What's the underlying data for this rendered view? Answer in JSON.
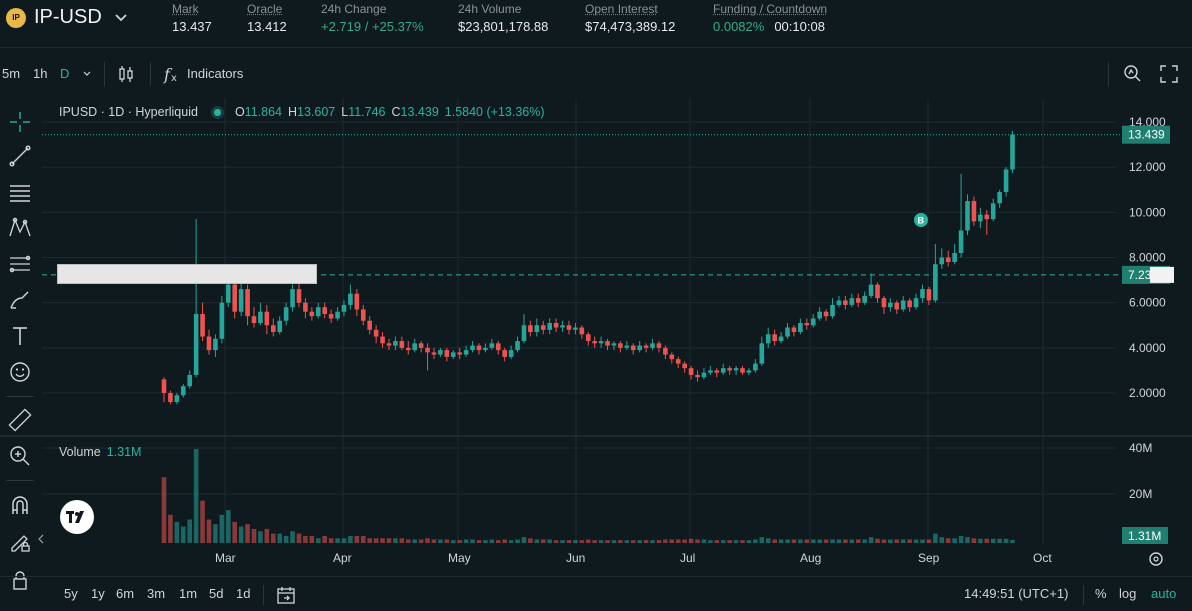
{
  "header": {
    "pair": "IP-USD",
    "logo_text": "IP",
    "stats": [
      {
        "label": "Mark",
        "value": "13.437",
        "underline": true
      },
      {
        "label": "Oracle",
        "value": "13.412",
        "underline": true
      },
      {
        "label": "24h Change",
        "value": "+2.719 / +25.37%",
        "green": true
      },
      {
        "label": "24h Volume",
        "value": "$23,801,178.88"
      },
      {
        "label": "Open Interest",
        "value": "$74,473,389.12",
        "underline": true
      },
      {
        "label": "Funding / Countdown",
        "value_a": "0.0082%",
        "value_b": "00:10:08",
        "underline": true
      }
    ]
  },
  "toolbar": {
    "intervals": [
      "5m",
      "1h",
      "D"
    ],
    "active_interval": "D",
    "indicators_label": "Indicators"
  },
  "legend": {
    "symbol": "IPUSD · 1D · Hyperliquid",
    "open_key": "O",
    "open": "11.864",
    "high_key": "H",
    "high": "13.607",
    "low_key": "L",
    "low": "11.746",
    "close_key": "C",
    "close": "13.439",
    "change": "1.5840 (+13.36%)"
  },
  "volume_legend": {
    "label": "Volume",
    "value": "1.31M"
  },
  "colors": {
    "up": "#26a69a",
    "down": "#ef5350",
    "accent": "#2ab4a0"
  },
  "chart_data": {
    "type": "candlestick",
    "title": "IPUSD · 1D · Hyperliquid",
    "y_ticks": [
      "14.000",
      "12.000",
      "10.000",
      "8.0000",
      "6.0000",
      "4.0000",
      "2.0000"
    ],
    "y_range": [
      0,
      15
    ],
    "x_ticks": [
      "Mar",
      "Apr",
      "May",
      "Jun",
      "Jul",
      "Aug",
      "Sep",
      "Oct"
    ],
    "volume_ticks": [
      "40M",
      "20M"
    ],
    "last_price_label": "13.439",
    "marker_price_label": "7.23",
    "marker_letter": "B",
    "volume_label": "1.31M",
    "candles": [
      [
        2.6,
        2.0,
        2.7,
        1.6
      ],
      [
        2.0,
        1.6,
        2.1,
        1.5
      ],
      [
        1.6,
        1.9,
        2.0,
        1.5
      ],
      [
        1.9,
        2.3,
        2.4,
        1.8
      ],
      [
        2.3,
        2.8,
        3.0,
        2.2
      ],
      [
        2.8,
        5.5,
        9.7,
        2.7
      ],
      [
        5.5,
        4.5,
        6.0,
        4.3
      ],
      [
        4.5,
        3.9,
        4.8,
        3.7
      ],
      [
        3.9,
        4.4,
        4.6,
        3.6
      ],
      [
        4.4,
        6.0,
        6.3,
        4.2
      ],
      [
        6.0,
        6.8,
        7.5,
        5.8
      ],
      [
        6.8,
        5.6,
        7.0,
        5.3
      ],
      [
        5.6,
        6.6,
        7.2,
        5.4
      ],
      [
        6.6,
        5.4,
        6.8,
        5.0
      ],
      [
        5.4,
        5.1,
        5.8,
        4.9
      ],
      [
        5.1,
        5.6,
        6.0,
        5.0
      ],
      [
        5.6,
        5.0,
        5.9,
        4.6
      ],
      [
        5.0,
        4.7,
        5.3,
        4.5
      ],
      [
        4.7,
        5.2,
        5.4,
        4.6
      ],
      [
        5.2,
        5.8,
        6.0,
        5.0
      ],
      [
        5.8,
        6.6,
        6.8,
        5.6
      ],
      [
        6.6,
        6.0,
        6.9,
        5.8
      ],
      [
        6.0,
        5.6,
        6.2,
        5.3
      ],
      [
        5.6,
        5.4,
        5.8,
        5.2
      ],
      [
        5.4,
        5.8,
        6.0,
        5.3
      ],
      [
        5.8,
        5.5,
        6.0,
        5.3
      ],
      [
        5.5,
        5.3,
        5.7,
        5.1
      ],
      [
        5.3,
        5.6,
        5.8,
        5.2
      ],
      [
        5.6,
        5.9,
        6.1,
        5.4
      ],
      [
        5.9,
        6.4,
        6.8,
        5.7
      ],
      [
        6.4,
        5.7,
        6.6,
        5.4
      ],
      [
        5.7,
        5.2,
        5.9,
        5.0
      ],
      [
        5.2,
        4.8,
        5.4,
        4.6
      ],
      [
        4.8,
        4.5,
        5.0,
        4.2
      ],
      [
        4.5,
        4.2,
        4.7,
        4.0
      ],
      [
        4.2,
        4.1,
        4.4,
        3.9
      ],
      [
        4.1,
        4.3,
        4.5,
        3.9
      ],
      [
        4.3,
        4.0,
        4.5,
        3.9
      ],
      [
        4.0,
        3.9,
        4.3,
        3.7
      ],
      [
        3.9,
        4.2,
        4.4,
        3.8
      ],
      [
        4.2,
        4.0,
        4.3,
        3.8
      ],
      [
        4.0,
        3.8,
        4.2,
        3.0
      ],
      [
        3.8,
        3.7,
        4.0,
        3.5
      ],
      [
        3.7,
        3.9,
        4.0,
        3.6
      ],
      [
        3.9,
        3.6,
        4.0,
        3.4
      ],
      [
        3.6,
        3.8,
        3.9,
        3.5
      ],
      [
        3.8,
        3.7,
        4.0,
        3.5
      ],
      [
        3.7,
        3.9,
        4.1,
        3.6
      ],
      [
        3.9,
        4.1,
        4.3,
        3.8
      ],
      [
        4.1,
        3.9,
        4.2,
        3.7
      ],
      [
        3.9,
        4.0,
        4.2,
        3.8
      ],
      [
        4.0,
        4.2,
        4.4,
        3.9
      ],
      [
        4.2,
        3.9,
        4.3,
        3.7
      ],
      [
        3.9,
        3.6,
        4.0,
        3.4
      ],
      [
        3.6,
        3.9,
        4.1,
        3.5
      ],
      [
        3.9,
        4.3,
        4.5,
        3.8
      ],
      [
        4.3,
        5.0,
        5.5,
        4.2
      ],
      [
        5.0,
        4.7,
        5.2,
        4.5
      ],
      [
        4.7,
        5.0,
        5.3,
        4.5
      ],
      [
        5.0,
        4.8,
        5.2,
        4.6
      ],
      [
        4.8,
        5.1,
        5.3,
        4.6
      ],
      [
        5.1,
        4.9,
        5.3,
        4.7
      ],
      [
        4.9,
        5.0,
        5.2,
        4.7
      ],
      [
        5.0,
        4.8,
        5.2,
        4.6
      ],
      [
        4.8,
        4.9,
        5.1,
        4.6
      ],
      [
        4.9,
        4.6,
        5.0,
        4.4
      ],
      [
        4.6,
        4.3,
        4.7,
        4.1
      ],
      [
        4.3,
        4.2,
        4.5,
        4.0
      ],
      [
        4.2,
        4.3,
        4.5,
        4.0
      ],
      [
        4.3,
        4.1,
        4.4,
        3.9
      ],
      [
        4.1,
        4.2,
        4.3,
        3.9
      ],
      [
        4.2,
        4.0,
        4.3,
        3.8
      ],
      [
        4.0,
        4.1,
        4.3,
        3.9
      ],
      [
        4.1,
        3.9,
        4.2,
        3.7
      ],
      [
        3.9,
        4.1,
        4.3,
        3.8
      ],
      [
        4.1,
        4.0,
        4.2,
        3.8
      ],
      [
        4.0,
        4.2,
        4.4,
        3.9
      ],
      [
        4.2,
        4.0,
        4.3,
        3.8
      ],
      [
        4.0,
        3.7,
        4.1,
        3.5
      ],
      [
        3.7,
        3.5,
        3.8,
        3.3
      ],
      [
        3.5,
        3.3,
        3.6,
        3.1
      ],
      [
        3.3,
        3.1,
        3.4,
        2.9
      ],
      [
        3.1,
        2.8,
        3.2,
        2.6
      ],
      [
        2.8,
        2.7,
        3.0,
        2.5
      ],
      [
        2.7,
        2.9,
        3.1,
        2.6
      ],
      [
        2.9,
        3.0,
        3.2,
        2.8
      ],
      [
        3.0,
        2.9,
        3.1,
        2.7
      ],
      [
        2.9,
        3.1,
        3.3,
        2.8
      ],
      [
        3.1,
        3.0,
        3.2,
        2.8
      ],
      [
        3.0,
        3.1,
        3.2,
        2.8
      ],
      [
        3.1,
        2.9,
        3.2,
        2.8
      ],
      [
        2.9,
        3.0,
        3.1,
        2.8
      ],
      [
        3.0,
        3.3,
        3.5,
        2.9
      ],
      [
        3.3,
        4.2,
        4.5,
        3.2
      ],
      [
        4.2,
        4.6,
        4.9,
        4.0
      ],
      [
        4.6,
        4.3,
        4.8,
        4.1
      ],
      [
        4.3,
        4.5,
        4.7,
        4.2
      ],
      [
        4.5,
        4.9,
        5.1,
        4.4
      ],
      [
        4.9,
        4.7,
        5.0,
        4.5
      ],
      [
        4.7,
        5.1,
        5.3,
        4.6
      ],
      [
        5.1,
        5.0,
        5.3,
        4.8
      ],
      [
        5.0,
        5.3,
        5.5,
        4.9
      ],
      [
        5.3,
        5.6,
        5.8,
        5.2
      ],
      [
        5.6,
        5.4,
        5.7,
        5.2
      ],
      [
        5.4,
        5.9,
        6.2,
        5.3
      ],
      [
        5.9,
        6.1,
        6.3,
        5.8
      ],
      [
        6.1,
        5.9,
        6.3,
        5.7
      ],
      [
        5.9,
        6.2,
        6.4,
        5.8
      ],
      [
        6.2,
        6.0,
        6.4,
        5.8
      ],
      [
        6.0,
        6.3,
        6.5,
        5.9
      ],
      [
        6.3,
        6.8,
        7.3,
        6.2
      ],
      [
        6.8,
        6.2,
        6.9,
        6.0
      ],
      [
        6.2,
        5.8,
        6.3,
        5.5
      ],
      [
        5.8,
        6.0,
        6.2,
        5.6
      ],
      [
        6.0,
        5.7,
        6.1,
        5.5
      ],
      [
        5.7,
        6.1,
        6.3,
        5.6
      ],
      [
        6.1,
        5.8,
        6.2,
        5.6
      ],
      [
        5.8,
        6.2,
        6.4,
        5.7
      ],
      [
        6.2,
        6.6,
        6.8,
        6.0
      ],
      [
        6.6,
        6.1,
        6.7,
        5.9
      ],
      [
        6.1,
        7.7,
        8.6,
        6.0
      ],
      [
        7.7,
        8.0,
        8.4,
        7.5
      ],
      [
        8.0,
        7.8,
        8.3,
        7.6
      ],
      [
        7.8,
        8.2,
        8.6,
        7.7
      ],
      [
        8.2,
        9.2,
        11.7,
        8.0
      ],
      [
        9.2,
        10.5,
        10.8,
        9.0
      ],
      [
        10.5,
        9.6,
        10.7,
        9.4
      ],
      [
        9.6,
        9.9,
        10.2,
        9.3
      ],
      [
        9.9,
        9.7,
        10.1,
        9.0
      ],
      [
        9.7,
        10.4,
        10.6,
        9.6
      ],
      [
        10.4,
        10.9,
        11.0,
        10.2
      ],
      [
        10.9,
        11.9,
        12.0,
        10.7
      ],
      [
        11.9,
        13.44,
        13.61,
        11.75
      ]
    ],
    "volumes": [
      28,
      12,
      9,
      7,
      10,
      40,
      18,
      10,
      8,
      12,
      14,
      9,
      7,
      8,
      6,
      5,
      6,
      4,
      4,
      3,
      5,
      4,
      3,
      3,
      2,
      3,
      2,
      2,
      2,
      3,
      3,
      3,
      2,
      2,
      2,
      2,
      2,
      2,
      1.5,
      1.5,
      1.5,
      2,
      1.5,
      1.5,
      1.5,
      1.2,
      1.2,
      1.5,
      1.5,
      1.2,
      1.2,
      1.5,
      1.2,
      1.5,
      1.2,
      1.5,
      2.5,
      2,
      1.5,
      1.5,
      1.5,
      1.2,
      1.2,
      1.2,
      1.2,
      1.2,
      1.5,
      1.2,
      1.2,
      1.2,
      1.2,
      1.2,
      1.2,
      1.2,
      1.2,
      1.2,
      1.2,
      1.2,
      1.5,
      1.5,
      1.5,
      1.5,
      1.8,
      1.5,
      1.5,
      1.2,
      1.2,
      1.2,
      1.2,
      1.2,
      1.2,
      1.2,
      1.5,
      2.5,
      2,
      1.5,
      1.5,
      1.5,
      1.5,
      1.5,
      1.5,
      1.5,
      1.5,
      1.5,
      1.5,
      1.5,
      1.5,
      1.5,
      1.5,
      1.5,
      2.5,
      1.8,
      1.5,
      1.5,
      1.5,
      1.5,
      1.5,
      1.5,
      1.5,
      1.5,
      4,
      2.5,
      2,
      2,
      3,
      2.5,
      2,
      1.8,
      1.8,
      1.8,
      1.8,
      1.8,
      1.31
    ]
  },
  "bottom_bar": {
    "ranges": [
      "5y",
      "1y",
      "6m",
      "3m",
      "1m",
      "5d",
      "1d"
    ],
    "time": "14:49:51 (UTC+1)",
    "percent_label": "%",
    "log_label": "log",
    "auto_label": "auto"
  }
}
